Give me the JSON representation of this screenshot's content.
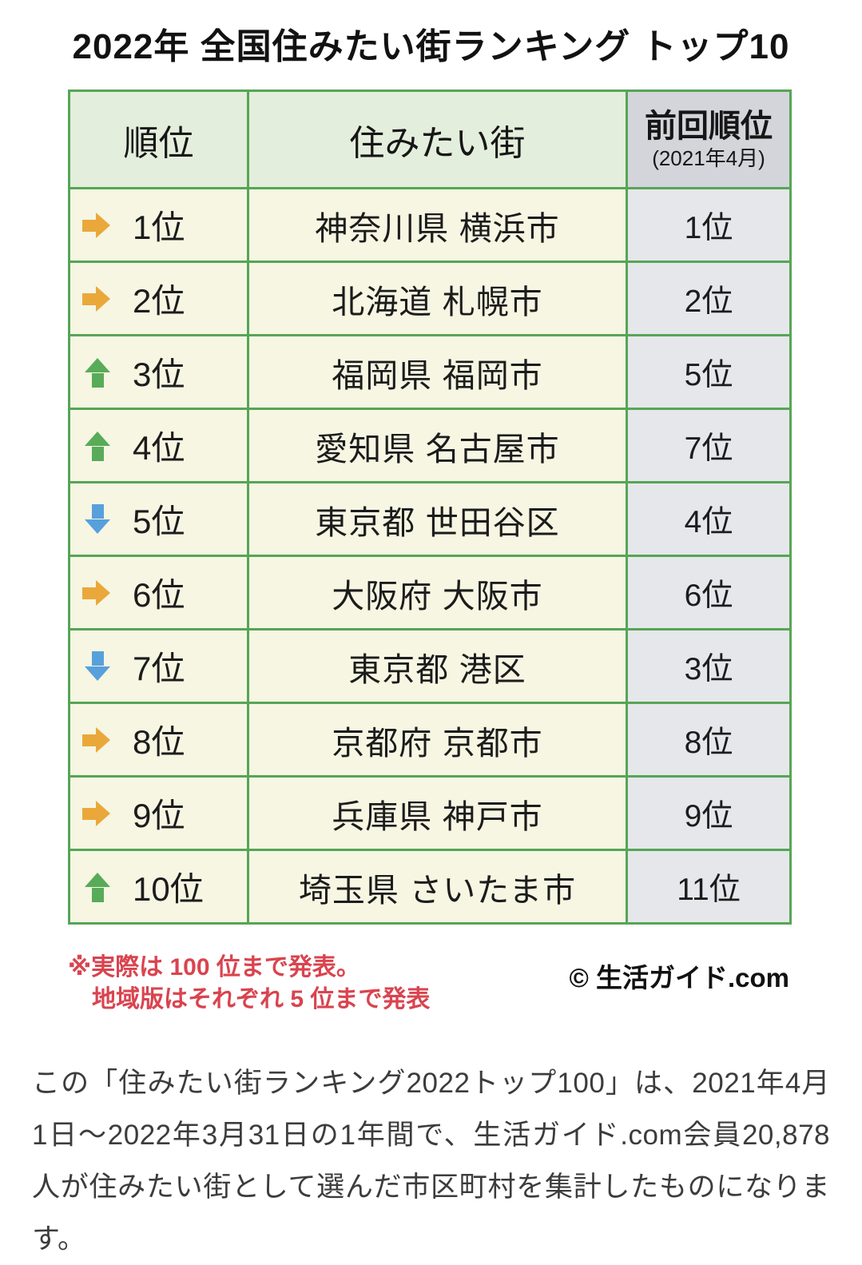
{
  "title": "2022年 全国住みたい街ランキング トップ10",
  "chart_data": {
    "type": "table",
    "title": "2022年 全国住みたい街ランキング トップ10",
    "columns": [
      "順位",
      "住みたい街",
      "前回順位 (2021年4月)"
    ],
    "headers": {
      "rank": "順位",
      "city": "住みたい街",
      "previous": "前回順位",
      "previous_sub": "(2021年4月)"
    },
    "rows": [
      {
        "rank": "1位",
        "city": "神奈川県 横浜市",
        "previous": "1位",
        "change": "same"
      },
      {
        "rank": "2位",
        "city": "北海道 札幌市",
        "previous": "2位",
        "change": "same"
      },
      {
        "rank": "3位",
        "city": "福岡県 福岡市",
        "previous": "5位",
        "change": "up"
      },
      {
        "rank": "4位",
        "city": "愛知県 名古屋市",
        "previous": "7位",
        "change": "up"
      },
      {
        "rank": "5位",
        "city": "東京都 世田谷区",
        "previous": "4位",
        "change": "down"
      },
      {
        "rank": "6位",
        "city": "大阪府 大阪市",
        "previous": "6位",
        "change": "same"
      },
      {
        "rank": "7位",
        "city": "東京都 港区",
        "previous": "3位",
        "change": "down"
      },
      {
        "rank": "8位",
        "city": "京都府 京都市",
        "previous": "8位",
        "change": "same"
      },
      {
        "rank": "9位",
        "city": "兵庫県 神戸市",
        "previous": "9位",
        "change": "same"
      },
      {
        "rank": "10位",
        "city": "埼玉県 さいたま市",
        "previous": "11位",
        "change": "up"
      }
    ],
    "legend": {
      "same": "前回と同順位（橙の右矢印）",
      "up": "前回より上昇（緑の上矢印）",
      "down": "前回より下降（青の下矢印）"
    }
  },
  "footnote": {
    "line1": "※実際は 100 位まで発表。",
    "line2": "地域版はそれぞれ 5 位まで発表"
  },
  "copyright": "© 生活ガイド.com",
  "description": "この「住みたい街ランキング2022トップ100」は、2021年4月1日〜2022年3月31日の1年間で、生活ガイド.com会員20,878人が住みたい街として選んだ市区町村を集計したものになります。",
  "colors": {
    "border-green": "#56A556",
    "header-bg": "#E4EEDC",
    "header-prev-bg": "#D3D5DB",
    "row-bg": "#F6F6E3",
    "prev-bg": "#E6E7EA",
    "arrow-same": "#EAA83B",
    "arrow-up": "#58AB58",
    "arrow-down": "#58A0DC",
    "note-red": "#D9444F"
  }
}
